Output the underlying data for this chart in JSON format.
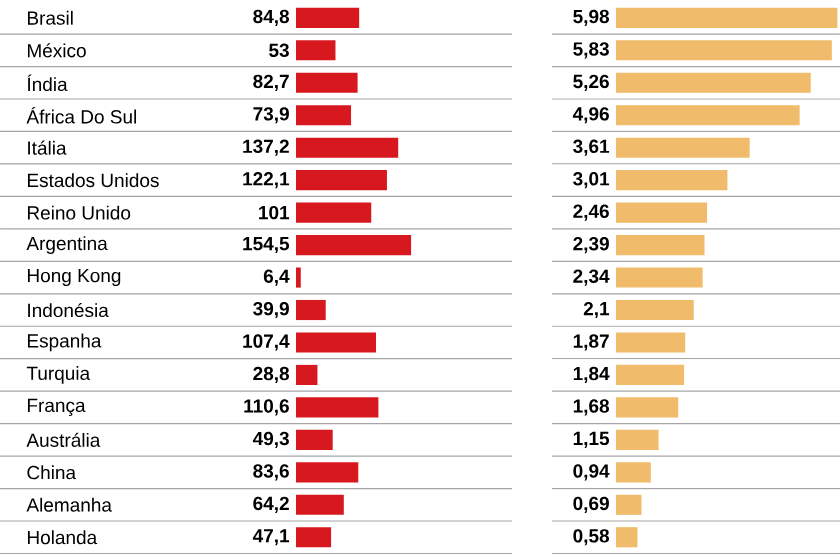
{
  "chart_data": [
    {
      "type": "bar",
      "orientation": "horizontal",
      "tick_labels": "y",
      "grid": "y",
      "color": "#d7191f",
      "xlim": [
        0,
        290
      ],
      "categories": [
        "Brasil",
        "México",
        "Índia",
        "África Do Sul",
        "Itália",
        "Estados Unidos",
        "Reino Unido",
        "Argentina",
        "Hong Kong",
        "Indonésia",
        "Espanha",
        "Turquia",
        "França",
        "Austrália",
        "China",
        "Alemanha",
        "Holanda"
      ],
      "values": [
        84.8,
        53,
        82.7,
        73.9,
        137.2,
        122.1,
        101,
        154.5,
        6.4,
        39.9,
        107.4,
        28.8,
        110.6,
        49.3,
        83.6,
        64.2,
        47.1
      ],
      "value_labels": [
        "84,8",
        "53",
        "82,7",
        "73,9",
        "137,2",
        "122,1",
        "101",
        "154,5",
        "6,4",
        "39,9",
        "107,4",
        "28,8",
        "110,6",
        "49,3",
        "83,6",
        "64,2",
        "47,1"
      ]
    },
    {
      "type": "bar",
      "orientation": "horizontal",
      "tick_labels": false,
      "grid": "y",
      "color": "#f0bb6a",
      "xlim": [
        0,
        6.05
      ],
      "categories": [
        null,
        null,
        null,
        null,
        null,
        null,
        null,
        null,
        null,
        null,
        null,
        null,
        null,
        null,
        null,
        null,
        null
      ],
      "values": [
        5.98,
        5.83,
        5.26,
        4.96,
        3.61,
        3.01,
        2.46,
        2.39,
        2.34,
        2.1,
        1.87,
        1.84,
        1.68,
        1.15,
        0.94,
        0.69,
        0.58
      ],
      "value_labels": [
        "5,98",
        "5,83",
        "5,26",
        "4,96",
        "3,61",
        "3,01",
        "2,46",
        "2,39",
        "2,34",
        "2,1",
        "1,87",
        "1,84",
        "1,68",
        "1,15",
        "0,94",
        "0,69",
        "0,58"
      ]
    }
  ]
}
